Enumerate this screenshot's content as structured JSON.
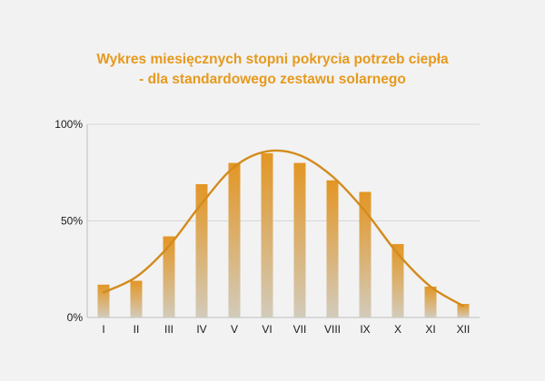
{
  "chart_data": {
    "type": "bar",
    "title_line1": "Wykres miesięcznych stopni pokrycia potrzeb ciepła",
    "title_line2": "- dla standardowego zestawu solarnego",
    "categories": [
      "I",
      "II",
      "III",
      "IV",
      "V",
      "VI",
      "VII",
      "VIII",
      "IX",
      "X",
      "XI",
      "XII"
    ],
    "values": [
      17,
      19,
      42,
      69,
      80,
      85,
      80,
      71,
      65,
      38,
      16,
      7
    ],
    "trend_line": [
      13,
      21,
      37,
      59,
      78,
      86,
      84,
      73,
      55,
      33,
      16,
      6
    ],
    "yticks": [
      {
        "value": 0,
        "label": "0%"
      },
      {
        "value": 50,
        "label": "50%"
      },
      {
        "value": 100,
        "label": "100%"
      }
    ],
    "ylim": [
      0,
      100
    ],
    "xlabel": "",
    "ylabel": "",
    "grid": true,
    "legend": "none",
    "colors": {
      "title": "#e59a1e",
      "bar_top": "#e39624",
      "bar_bottom": "#d2cbbb",
      "trend": "#d38b1c",
      "grid": "#d6d6d6",
      "axis": "#bdbdbd"
    }
  }
}
